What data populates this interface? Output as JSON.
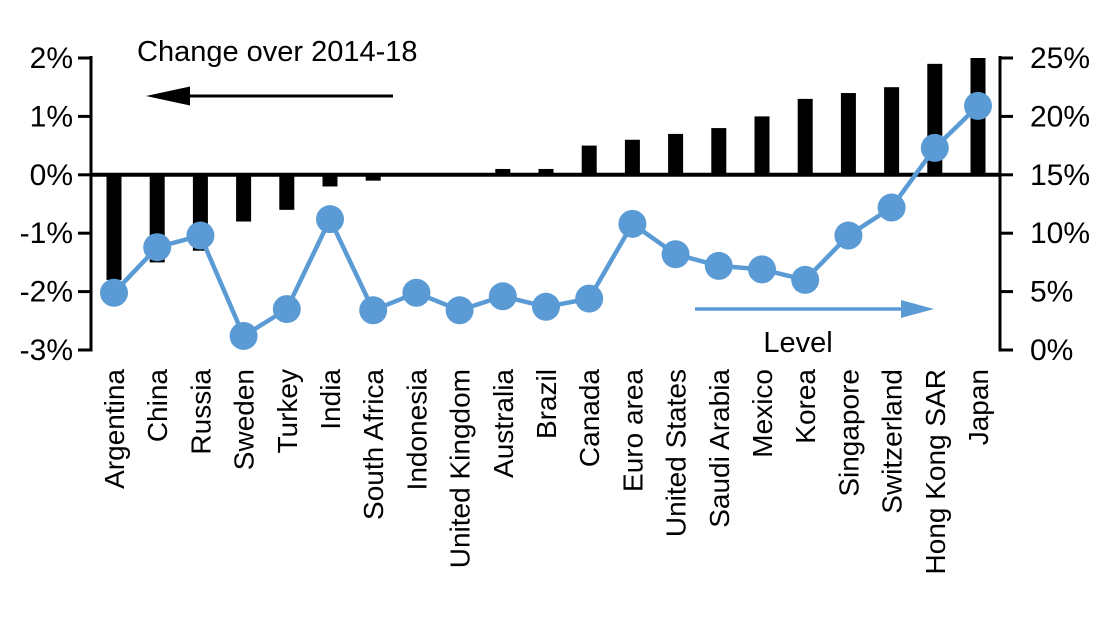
{
  "chart_data": {
    "type": "bar+line",
    "title": "",
    "description": "Dual-axis chart: black bars show change over 2014-18 (left axis, %), blue line with markers shows level (right axis, %), by country",
    "categories": [
      "Argentina",
      "China",
      "Russia",
      "Sweden",
      "Turkey",
      "India",
      "South Africa",
      "Indonesia",
      "United Kingdom",
      "Australia",
      "Brazil",
      "Canada",
      "Euro area",
      "United States",
      "Saudi Arabia",
      "Mexico",
      "Korea",
      "Singapore",
      "Switzerland",
      "Hong Kong SAR",
      "Japan"
    ],
    "series": [
      {
        "name": "Change over 2014-18",
        "type": "bar",
        "axis": "left",
        "color": "#000000",
        "values": [
          -1.8,
          -1.5,
          -1.3,
          -0.8,
          -0.6,
          -0.2,
          -0.1,
          0.0,
          0.0,
          0.1,
          0.1,
          0.5,
          0.6,
          0.7,
          0.8,
          1.0,
          1.3,
          1.4,
          1.5,
          1.9,
          2.0
        ]
      },
      {
        "name": "Level",
        "type": "line",
        "axis": "right",
        "color": "#5B9BD5",
        "values": [
          4.9,
          8.8,
          9.8,
          1.2,
          3.5,
          11.2,
          3.4,
          4.9,
          3.4,
          4.6,
          3.7,
          4.4,
          10.8,
          8.2,
          7.2,
          6.9,
          6.0,
          9.8,
          12.2,
          17.3,
          20.9
        ]
      }
    ],
    "left_axis": {
      "min": -3,
      "max": 2,
      "tick_values": [
        2,
        1,
        0,
        -1,
        -2,
        -3
      ],
      "tick_labels": [
        "2%",
        "1%",
        "0%",
        "-1%",
        "-2%",
        "-3%"
      ]
    },
    "right_axis": {
      "min": 0,
      "max": 25,
      "tick_values": [
        25,
        20,
        15,
        10,
        5,
        0
      ],
      "tick_labels": [
        "25%",
        "20%",
        "15%",
        "10%",
        "5%",
        "0%"
      ]
    },
    "annotations": {
      "left_series_label": "Change over 2014-18",
      "left_arrow_direction": "left",
      "right_series_label": "Level",
      "right_arrow_direction": "right"
    },
    "grid": false,
    "legend_position": "in-plot arrow annotations"
  },
  "colors": {
    "bar": "#000000",
    "line": "#5B9BD5",
    "axis": "#000000",
    "background": "#FFFFFF"
  }
}
